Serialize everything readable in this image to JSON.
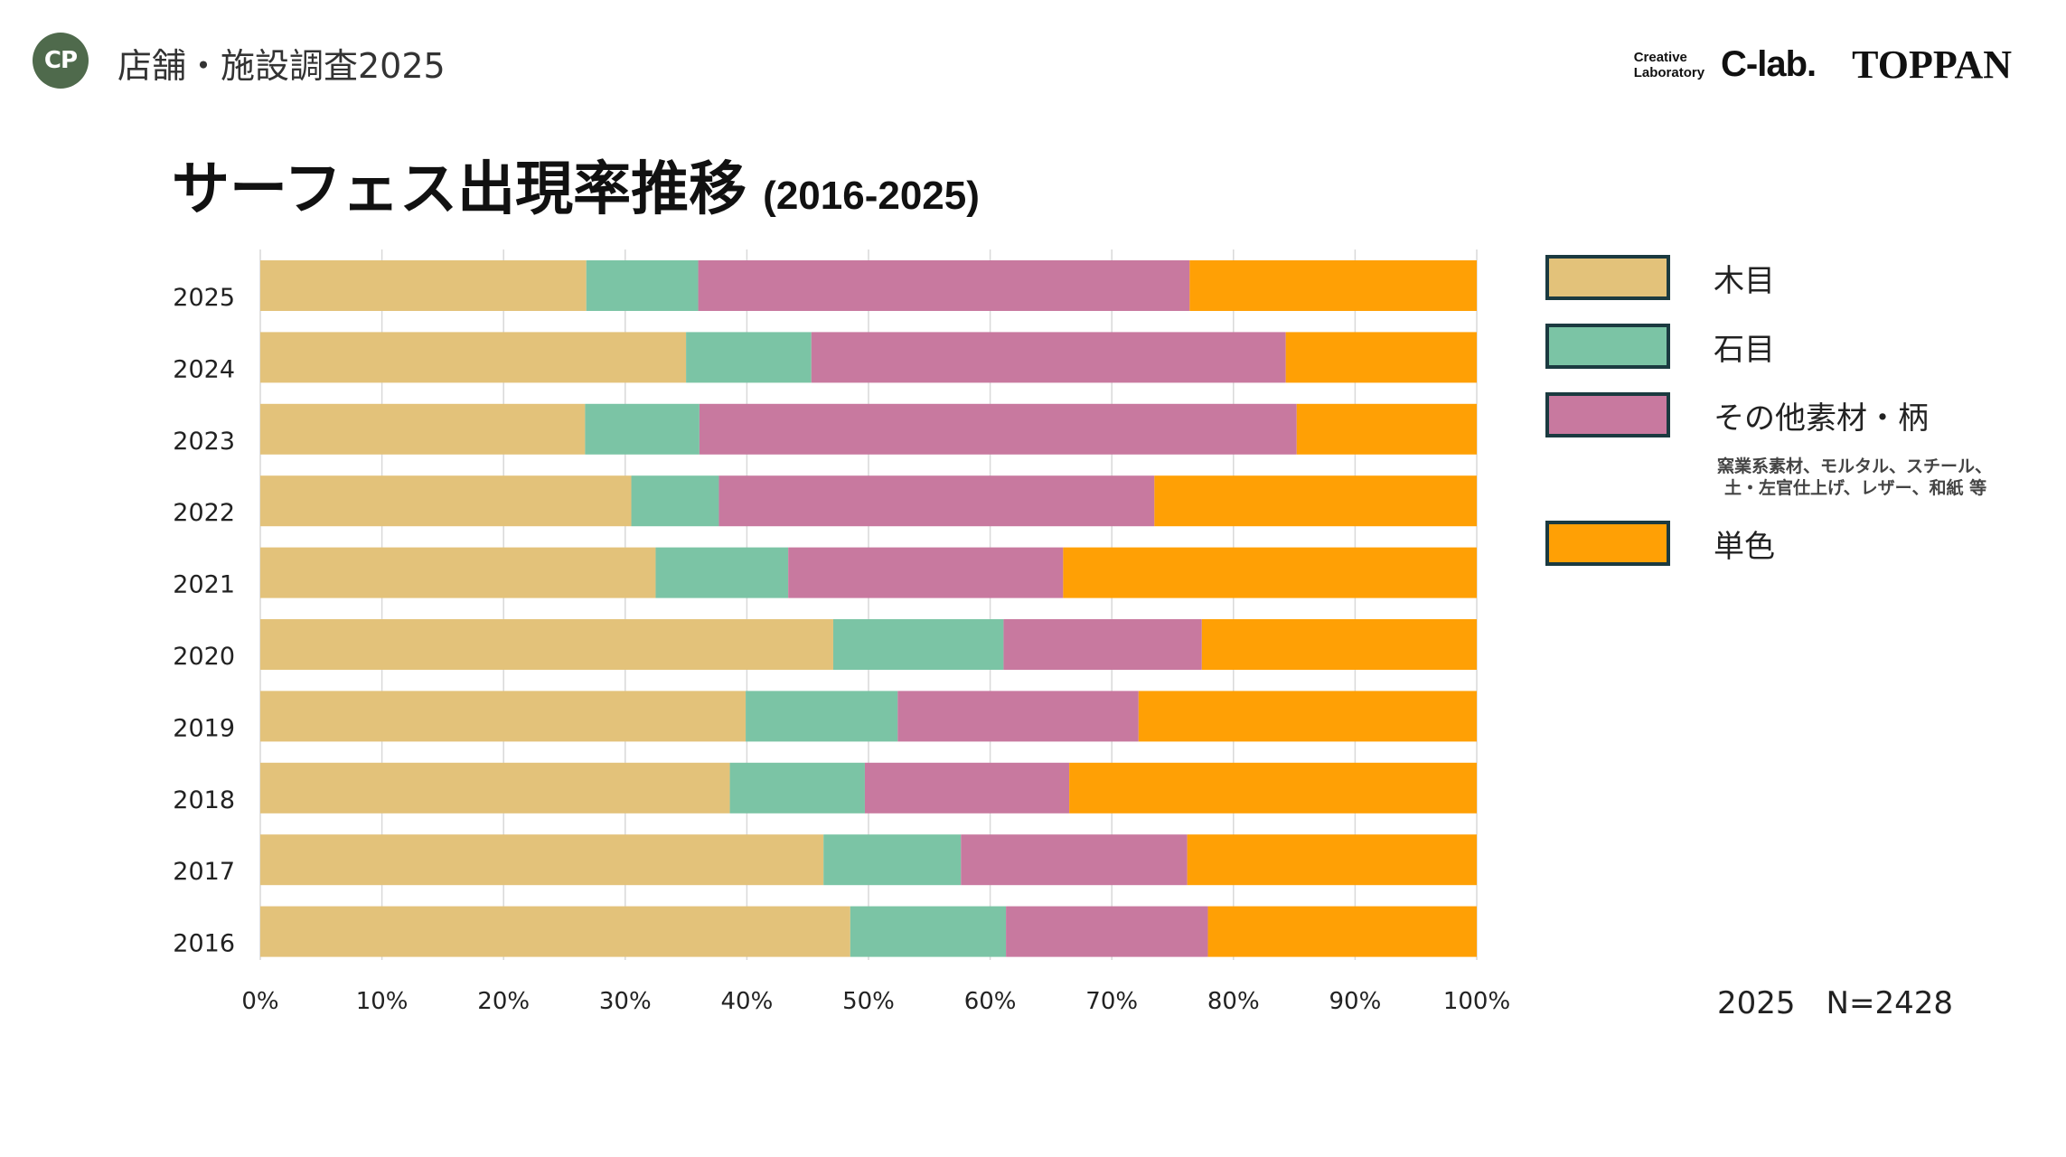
{
  "header": {
    "logo_text": "CP",
    "title": "店舗・施設調査2025",
    "brand_sub_line1": "Creative",
    "brand_sub_line2": "Laboratory",
    "brand_clab": "C-lab.",
    "brand_toppan": "TOPPAN"
  },
  "chart_title": {
    "main": "サーフェス出現率推移",
    "sub": "(2016-2025)"
  },
  "legend": {
    "items": [
      {
        "label": "木目",
        "color": "#e3c27a"
      },
      {
        "label": "石目",
        "color": "#7bc4a5"
      },
      {
        "label": "その他素材・柄",
        "color": "#c8799f"
      },
      {
        "label": "単色",
        "color": "#ffa005"
      }
    ],
    "note_line1": "窯業系素材、モルタル、スチール、",
    "note_line2": "土・左官仕上げ、レザー、和紙 等"
  },
  "footer": {
    "sample": "2025　N=2428"
  },
  "chart_data": {
    "type": "bar",
    "orientation": "horizontal",
    "stacked": true,
    "categories": [
      "2025",
      "2024",
      "2023",
      "2022",
      "2021",
      "2020",
      "2019",
      "2018",
      "2017",
      "2016"
    ],
    "series": [
      {
        "name": "木目",
        "color": "#e3c27a",
        "values": [
          26.8,
          35.0,
          26.7,
          30.5,
          32.5,
          47.1,
          39.9,
          38.6,
          46.3,
          48.5
        ]
      },
      {
        "name": "石目",
        "color": "#7bc4a5",
        "values": [
          9.2,
          10.3,
          9.4,
          7.2,
          10.9,
          14.0,
          12.5,
          11.1,
          11.3,
          12.8
        ]
      },
      {
        "name": "その他素材・柄",
        "color": "#c8799f",
        "values": [
          40.4,
          39.0,
          49.1,
          35.8,
          22.6,
          16.3,
          19.8,
          16.8,
          18.6,
          16.6
        ]
      },
      {
        "name": "単色",
        "color": "#ffa005",
        "values": [
          23.6,
          15.7,
          14.8,
          26.5,
          34.0,
          22.6,
          27.8,
          33.5,
          23.8,
          22.1
        ]
      }
    ],
    "xlim": [
      0,
      100
    ],
    "xticks": [
      "0%",
      "10%",
      "20%",
      "30%",
      "40%",
      "50%",
      "60%",
      "70%",
      "80%",
      "90%",
      "100%"
    ],
    "title": "サーフェス出現率推移",
    "grid": true
  }
}
